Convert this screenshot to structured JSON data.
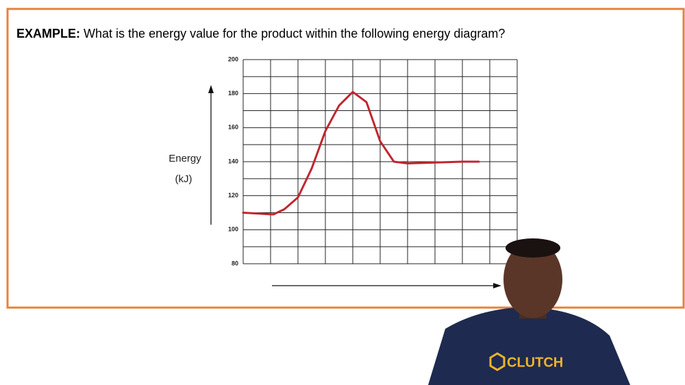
{
  "example_label": "EXAMPLE:",
  "question": "What is the energy value for the product within the following energy diagram?",
  "shirt_logo": "CLUTCH",
  "chart_data": {
    "type": "line",
    "y_label_lines": [
      "Energy",
      "(kJ)"
    ],
    "x": [
      0,
      1.1,
      1.5,
      2,
      2.5,
      3,
      3.5,
      4,
      4.5,
      5,
      5.5,
      6,
      8,
      8.6
    ],
    "series": [
      {
        "color": "#c0262e",
        "values": [
          110,
          109,
          112,
          119,
          136,
          158,
          173,
          181,
          175,
          152,
          140,
          139,
          140,
          140
        ]
      }
    ],
    "xlim": [
      0,
      10
    ],
    "ylim": [
      80,
      200
    ],
    "yticks": [
      80,
      100,
      120,
      140,
      160,
      180,
      200
    ],
    "yminor": [
      90,
      110,
      130,
      150,
      170,
      190
    ],
    "grid": true
  }
}
